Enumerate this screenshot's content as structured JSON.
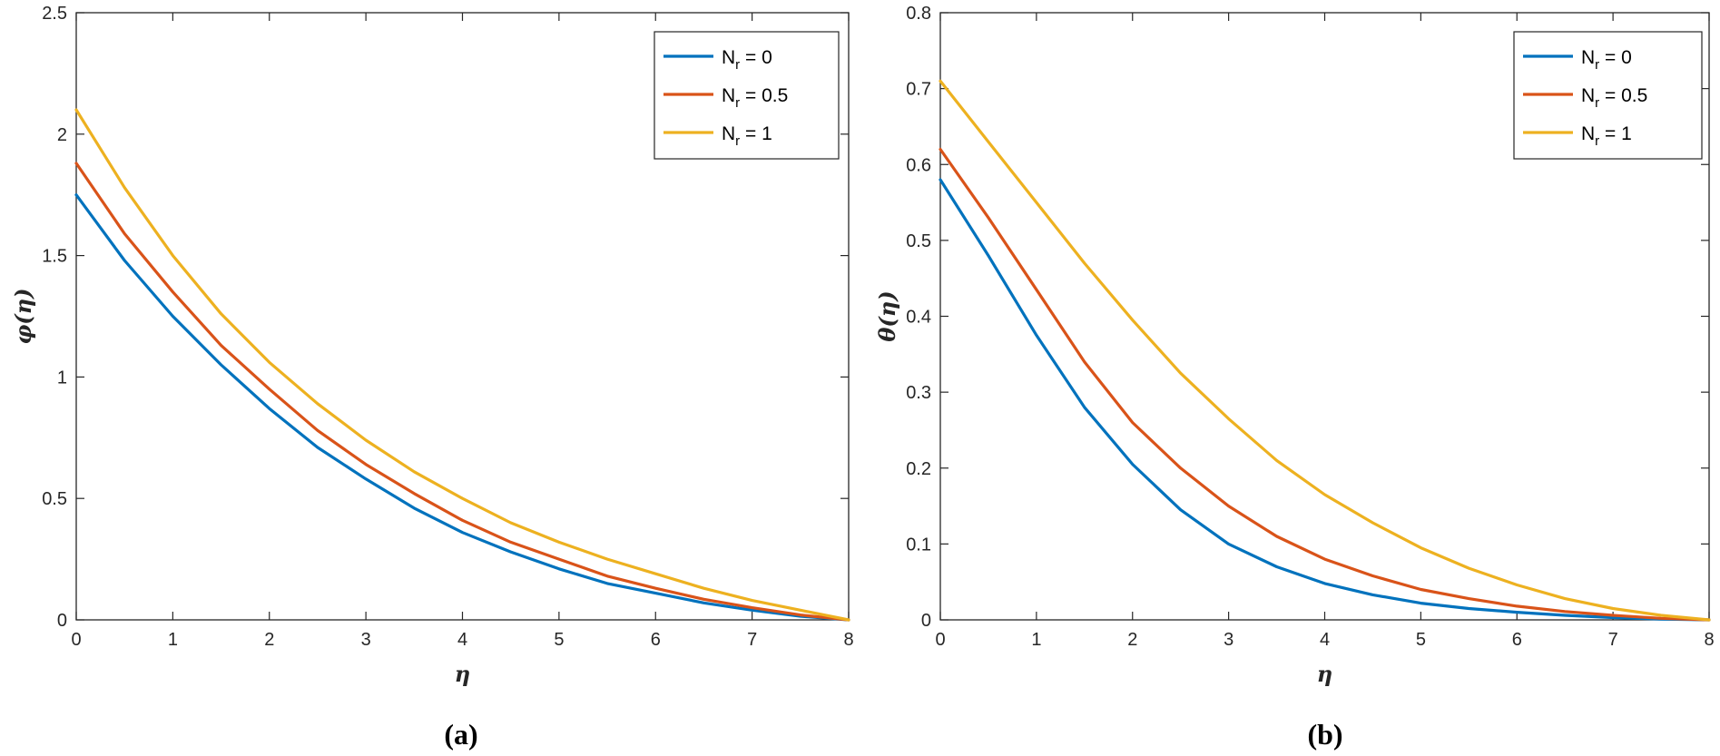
{
  "chart_data": [
    {
      "type": "line",
      "panel_label": "(a)",
      "xlabel": "η",
      "ylabel": "φ(η)",
      "xlim": [
        0,
        8
      ],
      "ylim": [
        0,
        2.5
      ],
      "xticks": [
        0,
        1,
        2,
        3,
        4,
        5,
        6,
        7,
        8
      ],
      "yticks": [
        0,
        0.5,
        1,
        1.5,
        2,
        2.5
      ],
      "grid": false,
      "legend_position": "top-right",
      "x": [
        0,
        0.5,
        1,
        1.5,
        2,
        2.5,
        3,
        3.5,
        4,
        4.5,
        5,
        5.5,
        6,
        6.5,
        7,
        7.5,
        8
      ],
      "series": [
        {
          "legend": {
            "prefix": "N",
            "sub": "r",
            "suffix": " = 0"
          },
          "color": "#0072BD",
          "values": [
            1.75,
            1.48,
            1.25,
            1.05,
            0.87,
            0.71,
            0.58,
            0.46,
            0.36,
            0.28,
            0.21,
            0.15,
            0.11,
            0.07,
            0.04,
            0.015,
            0
          ]
        },
        {
          "legend": {
            "prefix": "N",
            "sub": "r",
            "suffix": " = 0.5"
          },
          "color": "#D95319",
          "values": [
            1.88,
            1.59,
            1.35,
            1.13,
            0.95,
            0.78,
            0.64,
            0.52,
            0.41,
            0.32,
            0.25,
            0.18,
            0.13,
            0.085,
            0.05,
            0.02,
            0
          ]
        },
        {
          "legend": {
            "prefix": "N",
            "sub": "r",
            "suffix": " = 1"
          },
          "color": "#EDB120",
          "values": [
            2.1,
            1.78,
            1.5,
            1.26,
            1.06,
            0.89,
            0.74,
            0.61,
            0.5,
            0.4,
            0.32,
            0.25,
            0.19,
            0.13,
            0.08,
            0.04,
            0
          ]
        }
      ]
    },
    {
      "type": "line",
      "panel_label": "(b)",
      "xlabel": "η",
      "ylabel": "θ(η)",
      "xlim": [
        0,
        8
      ],
      "ylim": [
        0,
        0.8
      ],
      "xticks": [
        0,
        1,
        2,
        3,
        4,
        5,
        6,
        7,
        8
      ],
      "yticks": [
        0,
        0.1,
        0.2,
        0.3,
        0.4,
        0.5,
        0.6,
        0.7,
        0.8
      ],
      "grid": false,
      "legend_position": "top-right",
      "x": [
        0,
        0.5,
        1,
        1.5,
        2,
        2.5,
        3,
        3.5,
        4,
        4.5,
        5,
        5.5,
        6,
        6.5,
        7,
        7.5,
        8
      ],
      "series": [
        {
          "legend": {
            "prefix": "N",
            "sub": "r",
            "suffix": " = 0"
          },
          "color": "#0072BD",
          "values": [
            0.58,
            0.48,
            0.375,
            0.28,
            0.205,
            0.145,
            0.1,
            0.07,
            0.048,
            0.033,
            0.022,
            0.015,
            0.01,
            0.006,
            0.003,
            0.001,
            0
          ]
        },
        {
          "legend": {
            "prefix": "N",
            "sub": "r",
            "suffix": " = 0.5"
          },
          "color": "#D95319",
          "values": [
            0.62,
            0.53,
            0.435,
            0.34,
            0.26,
            0.2,
            0.15,
            0.11,
            0.08,
            0.058,
            0.04,
            0.028,
            0.018,
            0.011,
            0.006,
            0.002,
            0
          ]
        },
        {
          "legend": {
            "prefix": "N",
            "sub": "r",
            "suffix": " = 1"
          },
          "color": "#EDB120",
          "values": [
            0.71,
            0.63,
            0.55,
            0.47,
            0.395,
            0.325,
            0.265,
            0.21,
            0.165,
            0.128,
            0.095,
            0.068,
            0.046,
            0.028,
            0.015,
            0.006,
            0
          ]
        }
      ]
    }
  ]
}
